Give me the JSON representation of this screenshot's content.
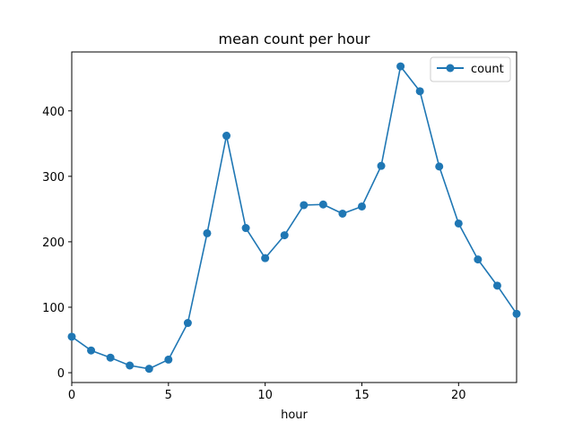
{
  "chart_data": {
    "type": "line",
    "title": "mean count per hour",
    "xlabel": "hour",
    "ylabel": "",
    "xlim": [
      0,
      23
    ],
    "ylim": [
      -15,
      490
    ],
    "xticks": [
      0,
      5,
      10,
      15,
      20
    ],
    "yticks": [
      0,
      100,
      200,
      300,
      400
    ],
    "grid": false,
    "legend_position": "top-right",
    "color": "#1f77b4",
    "marker": "circle",
    "series": [
      {
        "name": "count",
        "x": [
          0,
          1,
          2,
          3,
          4,
          5,
          6,
          7,
          8,
          9,
          10,
          11,
          12,
          13,
          14,
          15,
          16,
          17,
          18,
          19,
          20,
          21,
          22,
          23
        ],
        "values": [
          55,
          34,
          23,
          11,
          6,
          20,
          76,
          213,
          362,
          221,
          175,
          210,
          256,
          257,
          243,
          254,
          316,
          468,
          430,
          315,
          228,
          173,
          133,
          90
        ]
      }
    ]
  }
}
